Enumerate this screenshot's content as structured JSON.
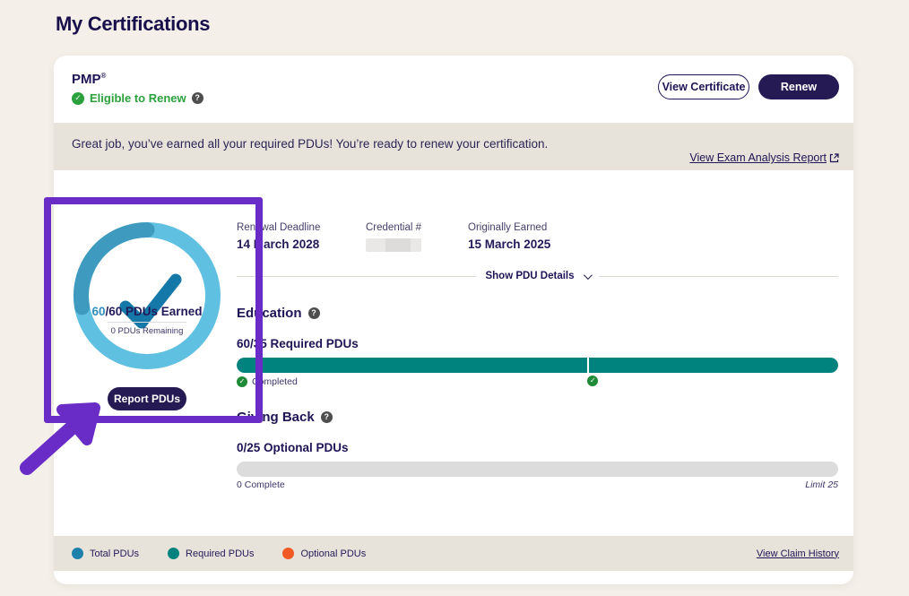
{
  "page": {
    "title": "My Certifications",
    "background": "#f4f0e9"
  },
  "header": {
    "cert_name": "PMP",
    "cert_trademark": "®",
    "status_label": "Eligible to Renew",
    "status_color": "#2aa13c",
    "view_certificate_label": "View Certificate",
    "renew_label": "Renew"
  },
  "banner": {
    "message": "Great job, you’ve earned all your required PDUs! You’re ready to renew your certification.",
    "report_link_label": "View Exam Analysis Report"
  },
  "donut": {
    "earned_highlight": "60",
    "earned_rest": "/60 PDUs Earned",
    "remaining_label": "0 PDUs Remaining",
    "report_button_label": "Report PDUs",
    "ring_color": "#5fc0e1",
    "ring_accent_color": "#3a93b8",
    "check_color": "#1478a8",
    "percent_complete": 100
  },
  "info": {
    "renewal_deadline": {
      "label": "Renewal Deadline",
      "value": "14 March 2028"
    },
    "credential": {
      "label": "Credential #",
      "value": ""
    },
    "originally_earned": {
      "label": "Originally Earned",
      "value": "15 March 2025"
    }
  },
  "pdu_details": {
    "toggle_label": "Show PDU Details"
  },
  "education": {
    "heading": "Education",
    "progress_label": "60/35 Required PDUs",
    "completed_label": "Completed",
    "bar_color": "#00837e",
    "percent": 100,
    "marker_percent": 58.3
  },
  "giving_back": {
    "heading": "Giving Back",
    "progress_label": "0/25 Optional PDUs",
    "complete_label": "0 Complete",
    "limit_label": "Limit 25",
    "percent": 0
  },
  "legend": {
    "items": [
      {
        "label": "Total PDUs",
        "color": "#1d81ab"
      },
      {
        "label": "Required PDUs",
        "color": "#00837e"
      },
      {
        "label": "Optional PDUs",
        "color": "#f15a24"
      }
    ],
    "claim_history_link_label": "View Claim History"
  },
  "annotation": {
    "color": "#6a2cc7"
  }
}
